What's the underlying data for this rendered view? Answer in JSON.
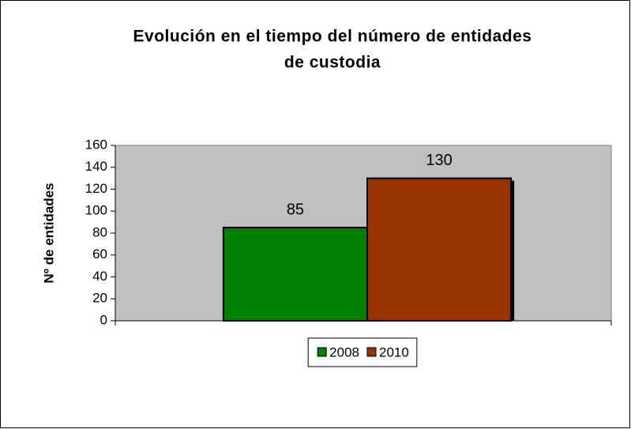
{
  "chart_data": {
    "type": "bar",
    "title": [
      "Evolución en el tiempo del número de entidades",
      "de custodia"
    ],
    "y_label": "Nº de entidades",
    "categories": [
      null
    ],
    "series": [
      {
        "name": "2008",
        "color": "#008000",
        "values": [
          85
        ]
      },
      {
        "name": "2010",
        "color": "#993300",
        "values": [
          130
        ]
      }
    ],
    "ylim": [
      0,
      160
    ],
    "yticks": [
      0,
      20,
      40,
      60,
      80,
      100,
      120,
      140,
      160
    ],
    "plot_background": "#c0c0c0",
    "legend": "bottom"
  }
}
